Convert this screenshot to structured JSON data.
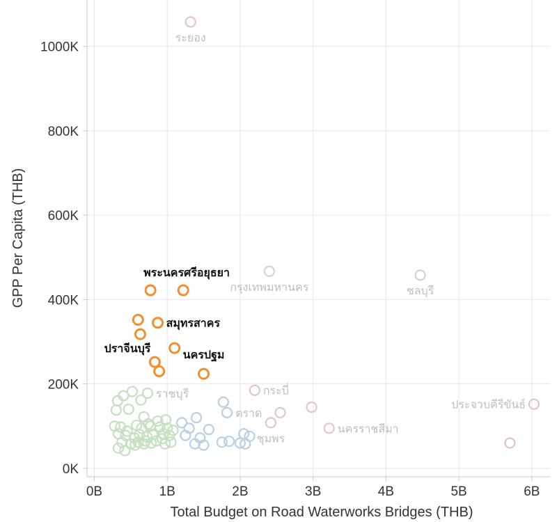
{
  "chart_data": {
    "type": "scatter",
    "xlabel": "Total Budget on Road Waterworks Bridges (THB)",
    "ylabel": "GPP Per Capita (THB)",
    "xlim": [
      -0.1,
      6.25
    ],
    "ylim": [
      -20000,
      1110000
    ],
    "x_ticks": [
      {
        "value": 0,
        "label": "0B"
      },
      {
        "value": 1,
        "label": "1B"
      },
      {
        "value": 2,
        "label": "2B"
      },
      {
        "value": 3,
        "label": "3B"
      },
      {
        "value": 4,
        "label": "4B"
      },
      {
        "value": 5,
        "label": "5B"
      },
      {
        "value": 6,
        "label": "6B"
      }
    ],
    "y_ticks": [
      {
        "value": 0,
        "label": "0K"
      },
      {
        "value": 200000,
        "label": "200K"
      },
      {
        "value": 400000,
        "label": "400K"
      },
      {
        "value": 600000,
        "label": "600K"
      },
      {
        "value": 800000,
        "label": "800K"
      },
      {
        "value": 1000000,
        "label": "1000K"
      }
    ],
    "grid": true,
    "colors": {
      "highlight": "#f28e2b",
      "pink": "#e3c4c8",
      "lavender": "#d6cfe3",
      "blue": "#b9d0e3",
      "green": "#c5dfc0",
      "label_dark": "#111111",
      "label_light": "#bdbdbd",
      "grid": "#e6e6e6",
      "axis": "#c8c8c8"
    },
    "series": [
      {
        "color": "highlight",
        "points": [
          {
            "x": 0.77,
            "y": 422000
          },
          {
            "x": 1.22,
            "y": 422000
          },
          {
            "x": 0.6,
            "y": 352000
          },
          {
            "x": 0.87,
            "y": 345000
          },
          {
            "x": 0.63,
            "y": 318000
          },
          {
            "x": 1.1,
            "y": 285000
          },
          {
            "x": 0.83,
            "y": 252000
          },
          {
            "x": 0.89,
            "y": 230000
          },
          {
            "x": 1.5,
            "y": 224000
          }
        ]
      },
      {
        "color": "pink",
        "points": [
          {
            "x": 1.32,
            "y": 1058000
          },
          {
            "x": 2.2,
            "y": 185000
          },
          {
            "x": 2.55,
            "y": 132000
          },
          {
            "x": 2.98,
            "y": 145000
          },
          {
            "x": 2.42,
            "y": 108000
          },
          {
            "x": 3.22,
            "y": 95000
          },
          {
            "x": 6.03,
            "y": 152000
          },
          {
            "x": 5.7,
            "y": 60000
          }
        ]
      },
      {
        "color": "lavender",
        "points": [
          {
            "x": 2.4,
            "y": 467000
          },
          {
            "x": 4.47,
            "y": 458000
          }
        ]
      },
      {
        "color": "blue",
        "points": [
          {
            "x": 1.77,
            "y": 157000
          },
          {
            "x": 1.82,
            "y": 132000
          },
          {
            "x": 1.2,
            "y": 108000
          },
          {
            "x": 1.3,
            "y": 95000
          },
          {
            "x": 1.4,
            "y": 120000
          },
          {
            "x": 1.57,
            "y": 92000
          },
          {
            "x": 1.25,
            "y": 78000
          },
          {
            "x": 1.45,
            "y": 72000
          },
          {
            "x": 1.38,
            "y": 58000
          },
          {
            "x": 1.5,
            "y": 55000
          },
          {
            "x": 1.75,
            "y": 62000
          },
          {
            "x": 1.85,
            "y": 64000
          },
          {
            "x": 2.05,
            "y": 82000
          },
          {
            "x": 2.13,
            "y": 76000
          },
          {
            "x": 2.0,
            "y": 60000
          },
          {
            "x": 2.07,
            "y": 58000
          }
        ]
      },
      {
        "color": "green",
        "points": [
          {
            "x": 0.32,
            "y": 160000
          },
          {
            "x": 0.4,
            "y": 172000
          },
          {
            "x": 0.52,
            "y": 182000
          },
          {
            "x": 0.73,
            "y": 178000
          },
          {
            "x": 0.64,
            "y": 162000
          },
          {
            "x": 0.3,
            "y": 138000
          },
          {
            "x": 0.47,
            "y": 140000
          },
          {
            "x": 0.68,
            "y": 122000
          },
          {
            "x": 0.87,
            "y": 112000
          },
          {
            "x": 0.98,
            "y": 115000
          },
          {
            "x": 0.28,
            "y": 100000
          },
          {
            "x": 0.36,
            "y": 98000
          },
          {
            "x": 0.45,
            "y": 88000
          },
          {
            "x": 0.58,
            "y": 102000
          },
          {
            "x": 0.65,
            "y": 95000
          },
          {
            "x": 0.77,
            "y": 100000
          },
          {
            "x": 0.9,
            "y": 98000
          },
          {
            "x": 1.0,
            "y": 95000
          },
          {
            "x": 1.08,
            "y": 90000
          },
          {
            "x": 0.33,
            "y": 82000
          },
          {
            "x": 0.43,
            "y": 78000
          },
          {
            "x": 0.55,
            "y": 72000
          },
          {
            "x": 0.62,
            "y": 80000
          },
          {
            "x": 0.72,
            "y": 75000
          },
          {
            "x": 0.8,
            "y": 80000
          },
          {
            "x": 0.95,
            "y": 82000
          },
          {
            "x": 1.03,
            "y": 78000
          },
          {
            "x": 0.38,
            "y": 62000
          },
          {
            "x": 0.5,
            "y": 58000
          },
          {
            "x": 0.6,
            "y": 62000
          },
          {
            "x": 0.7,
            "y": 65000
          },
          {
            "x": 0.78,
            "y": 60000
          },
          {
            "x": 0.85,
            "y": 65000
          },
          {
            "x": 0.93,
            "y": 70000
          },
          {
            "x": 1.05,
            "y": 62000
          },
          {
            "x": 0.33,
            "y": 48000
          },
          {
            "x": 0.42,
            "y": 42000
          },
          {
            "x": 0.56,
            "y": 55000
          },
          {
            "x": 0.68,
            "y": 58000
          },
          {
            "x": 0.97,
            "y": 58000
          },
          {
            "x": 0.74,
            "y": 105000
          }
        ]
      }
    ],
    "labels": [
      {
        "text": "ระยอง",
        "x": 1.32,
        "y": 1058000,
        "tone": "light",
        "pos": "below"
      },
      {
        "text": "พระนครศรีอยุธยา",
        "x": 0.77,
        "y": 422000,
        "tone": "dark",
        "pos": "above-right"
      },
      {
        "text": "กรุงเทพมหานคร",
        "x": 2.4,
        "y": 467000,
        "tone": "light",
        "pos": "below"
      },
      {
        "text": "ชลบุรี",
        "x": 4.47,
        "y": 458000,
        "tone": "light",
        "pos": "below"
      },
      {
        "text": "สมุทรสาคร",
        "x": 0.87,
        "y": 345000,
        "tone": "dark",
        "pos": "right"
      },
      {
        "text": "ปราจีนบุรี",
        "x": 0.83,
        "y": 252000,
        "tone": "dark",
        "pos": "above-left"
      },
      {
        "text": "นครปฐม",
        "x": 1.5,
        "y": 224000,
        "tone": "dark",
        "pos": "above"
      },
      {
        "text": "ราชบุรี",
        "x": 0.73,
        "y": 178000,
        "tone": "light",
        "pos": "right"
      },
      {
        "text": "กระบี่",
        "x": 2.2,
        "y": 185000,
        "tone": "light",
        "pos": "right"
      },
      {
        "text": "ตราด",
        "x": 1.82,
        "y": 132000,
        "tone": "light",
        "pos": "right"
      },
      {
        "text": "ชุมพร",
        "x": 2.42,
        "y": 108000,
        "tone": "light",
        "pos": "below"
      },
      {
        "text": "นครราชสีมา",
        "x": 3.22,
        "y": 95000,
        "tone": "light",
        "pos": "right"
      },
      {
        "text": "ประจวบคีรีขันธ์",
        "x": 6.03,
        "y": 152000,
        "tone": "light",
        "pos": "left"
      }
    ]
  }
}
